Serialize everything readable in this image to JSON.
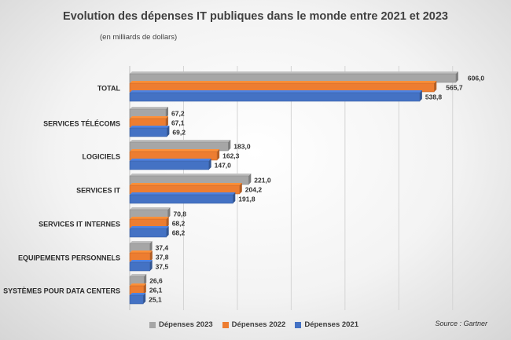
{
  "title": "Evolution des dépenses IT publiques dans le monde entre 2021 et 2023",
  "subtitle": "(en milliards de dollars)",
  "source": "Source : Gartner",
  "chart_data": {
    "type": "bar",
    "orientation": "horizontal",
    "categories": [
      "TOTAL",
      "SERVICES TÉLÉCOMS",
      "LOGICIELS",
      "SERVICES IT",
      "SERVICES IT INTERNES",
      "EQUIPEMENTS PERSONNELS",
      "SYSTÈMES POUR DATA CENTERS"
    ],
    "series": [
      {
        "name": "Dépenses 2023",
        "color": "#a6a6a6",
        "values": [
          606.0,
          67.2,
          183.0,
          221.0,
          70.8,
          37.4,
          26.6
        ],
        "labels": [
          "606,0",
          "67,2",
          "183,0",
          "221,0",
          "70,8",
          "37,4",
          "26,6"
        ]
      },
      {
        "name": "Dépenses 2022",
        "color": "#ed7d31",
        "values": [
          565.7,
          67.1,
          162.3,
          204.2,
          68.2,
          37.8,
          26.1
        ],
        "labels": [
          "565,7",
          "67,1",
          "162,3",
          "204,2",
          "68,2",
          "37,8",
          "26,1"
        ]
      },
      {
        "name": "Dépenses 2021",
        "color": "#4472c4",
        "values": [
          538.8,
          69.2,
          147.0,
          191.8,
          68.2,
          37.5,
          25.1
        ],
        "labels": [
          "538,8",
          "69,2",
          "147,0",
          "191,8",
          "68,2",
          "37,5",
          "25,1"
        ]
      }
    ],
    "xlim": [
      0,
      650
    ],
    "grid": true,
    "legend": "bottom"
  }
}
